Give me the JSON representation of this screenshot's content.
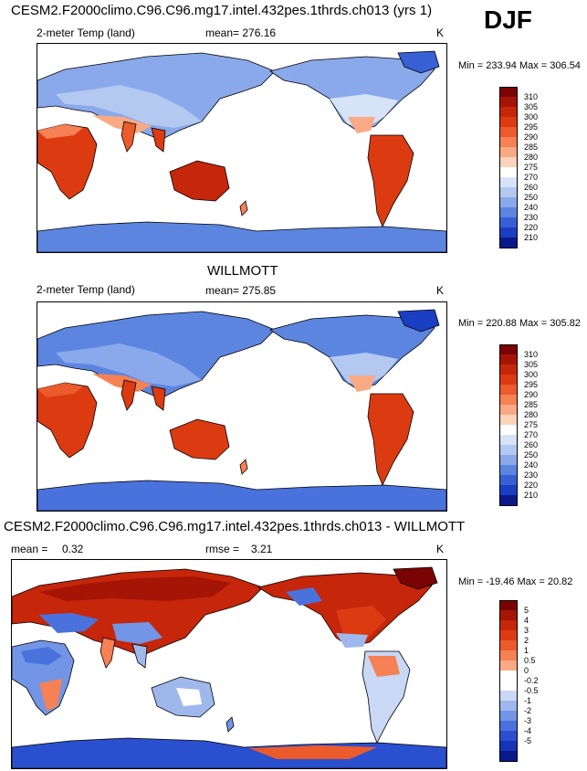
{
  "figure": {
    "season": "DJF"
  },
  "panel1": {
    "title": "CESM2.F2000climo.C96.C96.mg17.intel.432pes.1thrds.ch013 (yrs 1)",
    "variable": "2-meter Temp (land)",
    "mean": "mean= 276.16",
    "units": "K",
    "minmax": "Min = 233.94 Max = 306.54"
  },
  "panel2": {
    "title": "WILLMOTT",
    "variable": "2-meter Temp (land)",
    "mean": "mean= 275.85",
    "units": "K",
    "minmax": "Min = 220.88 Max = 305.82"
  },
  "panel3": {
    "title": "CESM2.F2000climo.C96.C96.mg17.intel.432pes.1thrds.ch013 - WILLMOTT",
    "mean_label": "mean =",
    "mean": "0.32",
    "rmse_label": "rmse =",
    "rmse": "3.21",
    "units": "K",
    "minmax": "Min = -19.46 Max = 20.82"
  },
  "colorbar_abs": {
    "labels": [
      "310",
      "305",
      "300",
      "295",
      "290",
      "285",
      "280",
      "275",
      "270",
      "260",
      "250",
      "240",
      "230",
      "220",
      "210"
    ],
    "colors": [
      "#7a0403",
      "#a51505",
      "#c6260a",
      "#dc3b12",
      "#eb5b2c",
      "#f58154",
      "#f9a983",
      "#fbd3ba",
      "#ffffff",
      "#d7e4f7",
      "#b3c9f0",
      "#8aa9ea",
      "#5c85e0",
      "#3760d4",
      "#1b3fc2",
      "#0a1a8a"
    ]
  },
  "colorbar_diff": {
    "labels": [
      "5",
      "4",
      "3",
      "2",
      "1",
      "0.5",
      "0",
      "-0.2",
      "-0.5",
      "-1",
      "-2",
      "-3",
      "-4",
      "-5"
    ],
    "colors": [
      "#7a0403",
      "#a51505",
      "#c6260a",
      "#dc3b12",
      "#eb5b2c",
      "#f58154",
      "#f9a983",
      "#ffffff",
      "#ffffff",
      "#c9d8f4",
      "#9fb8ec",
      "#7395e5",
      "#4a72dc",
      "#2a4fcf",
      "#1733b7",
      "#0a1a8a"
    ]
  }
}
